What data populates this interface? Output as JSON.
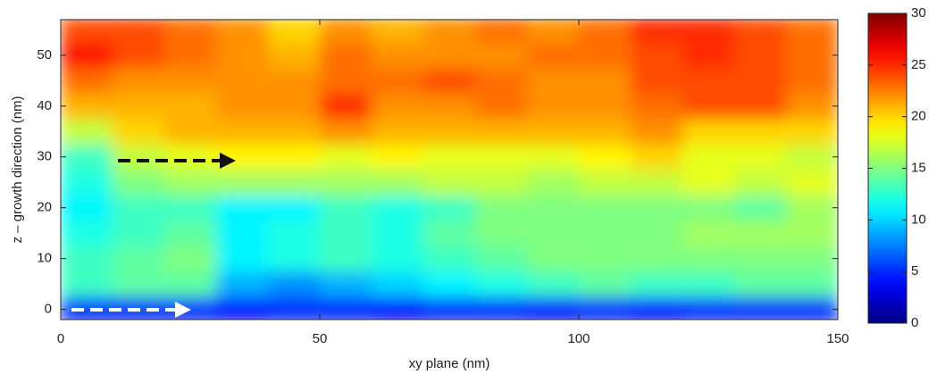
{
  "chart_data": {
    "type": "heatmap",
    "xlabel": "xy plane (nm)",
    "ylabel": "z – growth direction (nm)",
    "x": [
      5,
      15,
      25,
      35,
      45,
      55,
      65,
      75,
      85,
      95,
      105,
      115,
      125,
      135,
      145
    ],
    "y": [
      0,
      5,
      10,
      15,
      20,
      25,
      30,
      35,
      40,
      45,
      50,
      55
    ],
    "z": [
      [
        5,
        5,
        5,
        4,
        5,
        5,
        4,
        5,
        5,
        4,
        5,
        4,
        5,
        5,
        5
      ],
      [
        13,
        14,
        14,
        9,
        8,
        9,
        10,
        11,
        12,
        13,
        14,
        13,
        13,
        14,
        14
      ],
      [
        13,
        14,
        15,
        11,
        12,
        13,
        12,
        13,
        14,
        15,
        15,
        15,
        15,
        15,
        15
      ],
      [
        12,
        13,
        14,
        11,
        12,
        13,
        12,
        14,
        15,
        15,
        15,
        15,
        16,
        16,
        16
      ],
      [
        11,
        13,
        13,
        11,
        11,
        13,
        12,
        13,
        15,
        15,
        15,
        15,
        15,
        14,
        16
      ],
      [
        12,
        15,
        16,
        16,
        16,
        16,
        16,
        17,
        17,
        16,
        17,
        17,
        18,
        17,
        18
      ],
      [
        13,
        17,
        18,
        19,
        19,
        18,
        19,
        18,
        18,
        18,
        19,
        20,
        18,
        18,
        17
      ],
      [
        17,
        20,
        21,
        21,
        21,
        22,
        21,
        21,
        21,
        21,
        21,
        22,
        20,
        20,
        20
      ],
      [
        21,
        21,
        21,
        22,
        22,
        25,
        22,
        22,
        23,
        22,
        22,
        23,
        24,
        24,
        22
      ],
      [
        23,
        22,
        22,
        22,
        22,
        23,
        23,
        24,
        23,
        22,
        22,
        24,
        24,
        24,
        23
      ],
      [
        26,
        24,
        23,
        22,
        21,
        23,
        22,
        22,
        22,
        23,
        23,
        24,
        25,
        24,
        23
      ],
      [
        24,
        24,
        23,
        22,
        20,
        22,
        21,
        22,
        23,
        22,
        23,
        25,
        25,
        24,
        23
      ]
    ],
    "colormap": "jet",
    "xlim": [
      0,
      150
    ],
    "xticks": [
      0,
      50,
      100,
      150
    ],
    "ylim": [
      -2,
      57
    ],
    "yticks": [
      0,
      10,
      20,
      30,
      40,
      50
    ],
    "clim": [
      0,
      30
    ],
    "cticks": [
      0,
      5,
      10,
      15,
      20,
      25,
      30
    ]
  }
}
